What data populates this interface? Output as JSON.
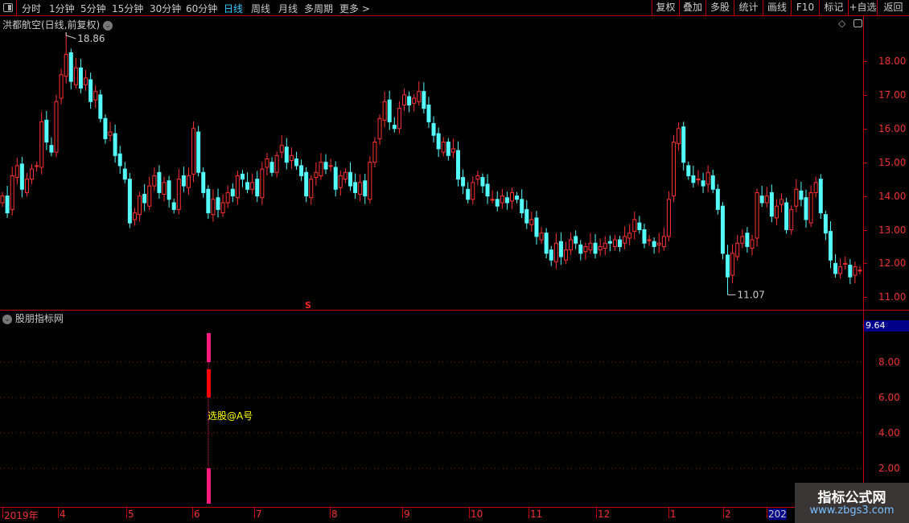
{
  "toolbar": {
    "periods": [
      "分时",
      "1分钟",
      "5分钟",
      "15分钟",
      "30分钟",
      "60分钟",
      "日线",
      "周线",
      "月线",
      "多周期",
      "更多 >"
    ],
    "active_period": "日线",
    "right_buttons": [
      "复权",
      "叠加",
      "多股",
      "统计",
      "画线",
      "F10",
      "标记",
      "+自选",
      "返回"
    ]
  },
  "chart": {
    "title": "洪都航空(日线,前复权)",
    "max_label": "18.86",
    "min_label": "11.07",
    "signal_marker": "S",
    "price_ticks": [
      "18.00",
      "17.00",
      "16.00",
      "15.00",
      "14.00",
      "13.00",
      "12.00",
      "11.00"
    ],
    "colors": {
      "up": "#ff3232",
      "down": "#54fcfc"
    }
  },
  "chart_data": {
    "type": "candlestick",
    "closes": [
      14.0,
      13.5,
      14.6,
      14.9,
      14.2,
      14.5,
      14.8,
      14.9,
      16.2,
      15.6,
      15.3,
      16.8,
      17.6,
      18.2,
      17.4,
      17.8,
      17.2,
      17.5,
      16.8,
      17.1,
      16.3,
      15.7,
      15.9,
      15.2,
      14.9,
      14.5,
      13.2,
      13.5,
      14.0,
      13.8,
      14.3,
      14.6,
      14.1,
      14.4,
      13.9,
      13.6,
      14.5,
      14.3,
      14.6,
      16.0,
      14.7,
      14.1,
      13.5,
      13.9,
      13.6,
      13.8,
      14.1,
      14.0,
      14.6,
      14.5,
      14.2,
      14.4,
      14.0,
      14.8,
      15.1,
      14.7,
      15.2,
      15.5,
      15.0,
      15.2,
      14.9,
      14.6,
      14.0,
      14.5,
      14.7,
      15.0,
      14.8,
      14.9,
      14.2,
      14.6,
      14.7,
      14.3,
      14.1,
      14.4,
      14.0,
      15.0,
      15.6,
      16.3,
      16.8,
      16.2,
      16.0,
      16.6,
      17.0,
      16.7,
      16.9,
      17.1,
      16.6,
      16.2,
      15.8,
      15.4,
      15.6,
      15.2,
      15.4,
      14.5,
      14.3,
      13.9,
      14.4,
      14.6,
      14.3,
      14.0,
      13.9,
      13.7,
      14.0,
      13.8,
      14.1,
      13.9,
      13.5,
      13.2,
      13.3,
      12.8,
      12.9,
      12.3,
      12.1,
      12.6,
      12.2,
      12.4,
      12.7,
      12.6,
      12.3,
      12.5,
      12.6,
      12.3,
      12.5,
      12.6,
      12.6,
      12.7,
      12.5,
      12.8,
      12.9,
      13.3,
      13.0,
      12.6,
      12.7,
      12.5,
      12.6,
      12.8,
      13.9,
      15.6,
      16.0,
      15.0,
      14.6,
      14.4,
      14.5,
      14.3,
      14.7,
      14.2,
      13.6,
      12.3,
      11.6,
      12.3,
      12.6,
      12.8,
      12.5,
      12.7,
      14.1,
      13.8,
      14.0,
      13.4,
      13.7,
      13.9,
      13.0,
      13.6,
      14.2,
      13.9,
      13.3,
      14.1,
      14.4,
      13.5,
      12.9,
      12.1,
      11.7,
      11.9,
      12.0,
      11.6,
      11.9,
      11.8
    ],
    "high": 18.86,
    "low": 11.07,
    "ylim": [
      10.8,
      19.0
    ],
    "x_ticks": [
      "2019年",
      "4",
      "5",
      "6",
      "7",
      "8",
      "9",
      "10",
      "11",
      "12",
      "1",
      "2",
      "202"
    ]
  },
  "indicator": {
    "title": "股朋指标网",
    "current_value": "9.64",
    "ticks": [
      "8.00",
      "6.00",
      "4.00",
      "2.00"
    ],
    "signal_label": "选股@A号",
    "bars": [
      {
        "from": 8.0,
        "to": 9.64,
        "color": "#ff1a80"
      },
      {
        "from": 6.0,
        "to": 7.6,
        "color": "#ff0000"
      },
      {
        "from": 0,
        "to": 2.0,
        "color": "#ff1a80"
      }
    ]
  },
  "watermark": {
    "title": "指标公式网",
    "url": "www.zbgs3.com"
  }
}
